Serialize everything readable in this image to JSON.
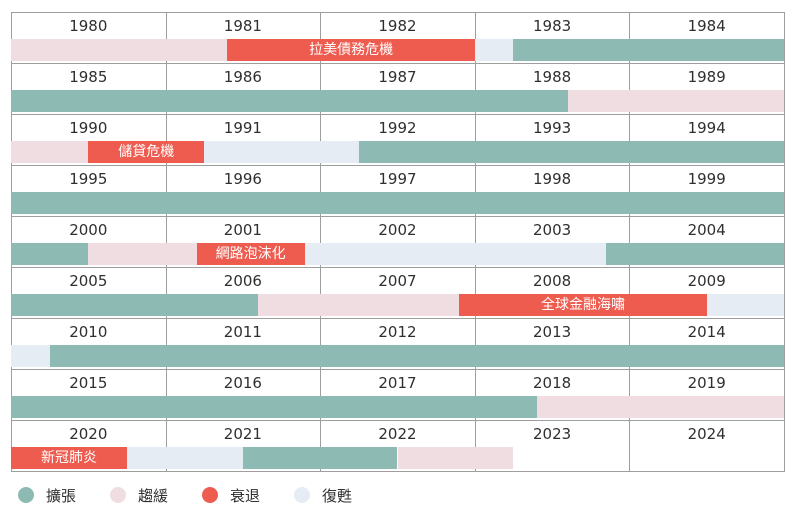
{
  "colors": {
    "expansion": "#8dbbb3",
    "slowdown": "#efdde2",
    "recession": "#ee5b4f",
    "recovery": "#e6ecf4"
  },
  "legend": [
    {
      "key": "expansion",
      "label": "擴張"
    },
    {
      "key": "slowdown",
      "label": "趨緩"
    },
    {
      "key": "recession",
      "label": "衰退"
    },
    {
      "key": "recovery",
      "label": "復甦"
    }
  ],
  "chart_data": {
    "type": "timeline",
    "start_year": 1980,
    "end_year": 2024,
    "years_per_row": 5,
    "phases": [
      {
        "phase": "slowdown",
        "start": 1980.0,
        "end": 1981.4
      },
      {
        "phase": "recession",
        "start": 1981.4,
        "end": 1983.0
      },
      {
        "phase": "recovery",
        "start": 1983.0,
        "end": 1983.25
      },
      {
        "phase": "expansion",
        "start": 1983.25,
        "end": 1988.6
      },
      {
        "phase": "slowdown",
        "start": 1988.6,
        "end": 1990.5
      },
      {
        "phase": "recession",
        "start": 1990.5,
        "end": 1991.25
      },
      {
        "phase": "recovery",
        "start": 1991.25,
        "end": 1992.25
      },
      {
        "phase": "expansion",
        "start": 1992.25,
        "end": 2000.5
      },
      {
        "phase": "slowdown",
        "start": 2000.5,
        "end": 2001.2
      },
      {
        "phase": "recession",
        "start": 2001.2,
        "end": 2001.9
      },
      {
        "phase": "recovery",
        "start": 2001.9,
        "end": 2003.85
      },
      {
        "phase": "expansion",
        "start": 2003.85,
        "end": 2006.6
      },
      {
        "phase": "slowdown",
        "start": 2006.6,
        "end": 2007.9
      },
      {
        "phase": "recession",
        "start": 2007.9,
        "end": 2009.5
      },
      {
        "phase": "recovery",
        "start": 2009.5,
        "end": 2010.25
      },
      {
        "phase": "expansion",
        "start": 2010.25,
        "end": 2018.4
      },
      {
        "phase": "slowdown",
        "start": 2018.4,
        "end": 2020.0
      },
      {
        "phase": "recession",
        "start": 2020.0,
        "end": 2020.75
      },
      {
        "phase": "recovery",
        "start": 2020.75,
        "end": 2021.5
      },
      {
        "phase": "expansion",
        "start": 2021.5,
        "end": 2022.5
      },
      {
        "phase": "slowdown",
        "start": 2022.5,
        "end": 2023.25
      }
    ],
    "events": [
      {
        "label": "拉美債務危機",
        "start": 1981.4,
        "end": 1983.0
      },
      {
        "label": "儲貸危機",
        "start": 1990.5,
        "end": 1991.25
      },
      {
        "label": "網路泡沫化",
        "start": 2001.2,
        "end": 2001.9
      },
      {
        "label": "全球金融海嘯",
        "start": 2007.9,
        "end": 2009.5
      },
      {
        "label": "新冠肺炎",
        "start": 2020.0,
        "end": 2020.75
      }
    ]
  }
}
